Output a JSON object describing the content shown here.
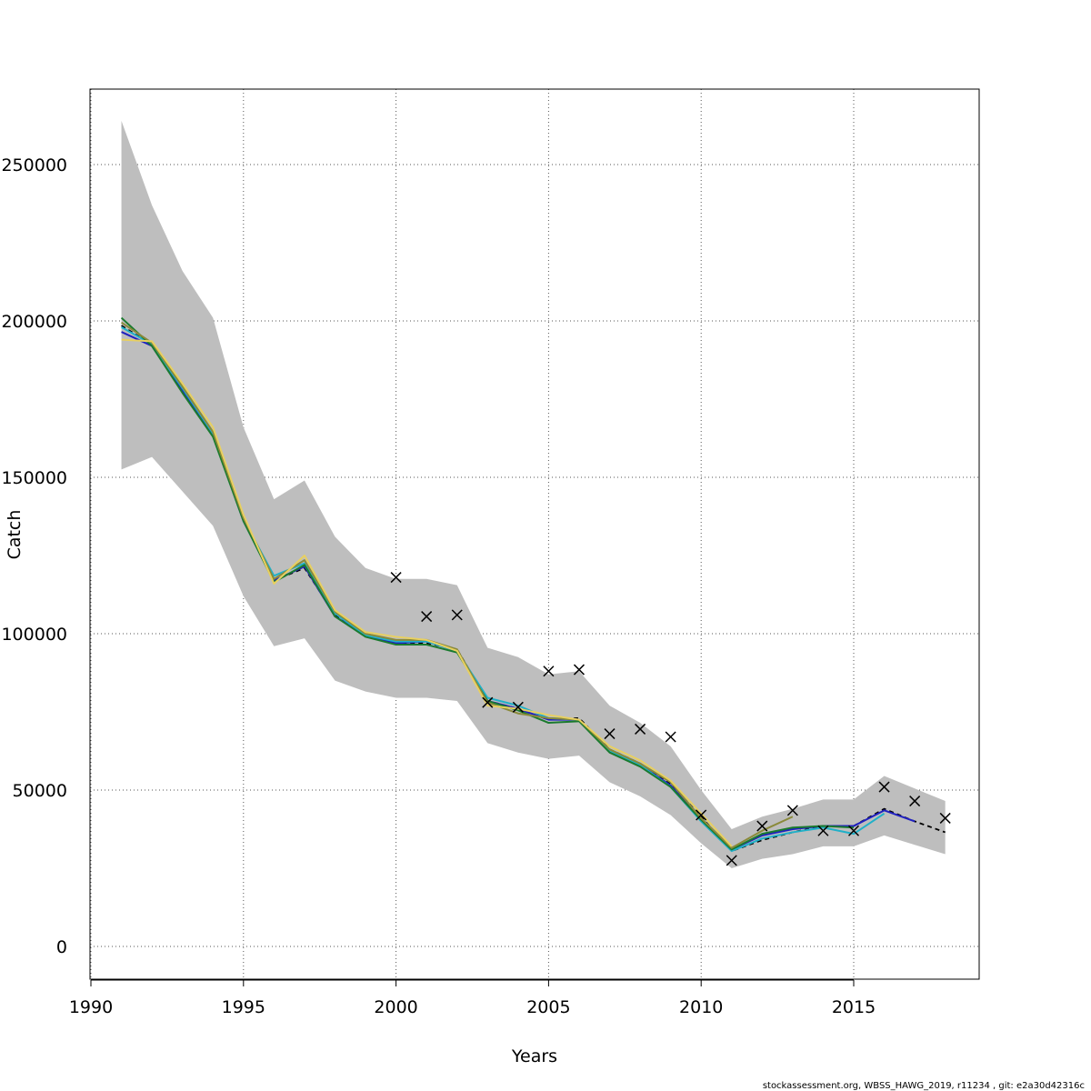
{
  "chart_data": {
    "type": "line",
    "title": "",
    "xlabel": "Years",
    "ylabel": "Catch",
    "xlim": [
      1990,
      2019
    ],
    "ylim": [
      -10000,
      275000
    ],
    "grid": true,
    "x_ticks": [
      "1990",
      "1995",
      "2000",
      "2005",
      "2010",
      "2015"
    ],
    "y_ticks": [
      "0",
      "50000",
      "100000",
      "150000",
      "200000",
      "250000"
    ],
    "confidence_band": {
      "x": [
        1991,
        1992,
        1993,
        1994,
        1995,
        1996,
        1997,
        1998,
        1999,
        2000,
        2001,
        2002,
        2003,
        2004,
        2005,
        2006,
        2007,
        2008,
        2009,
        2010,
        2011,
        2012,
        2013,
        2014,
        2015,
        2016,
        2017,
        2018
      ],
      "upper": [
        264000,
        237000,
        216000,
        201000,
        166000,
        143000,
        149000,
        131000,
        121000,
        117500,
        117500,
        115500,
        95500,
        92500,
        87000,
        88000,
        77000,
        71500,
        64000,
        50000,
        37500,
        41500,
        44000,
        47000,
        47000,
        54500,
        50500,
        46500
      ],
      "lower": [
        152500,
        156500,
        145500,
        134500,
        112000,
        96000,
        98500,
        85000,
        81500,
        79500,
        79500,
        78500,
        65000,
        62000,
        60000,
        61000,
        52500,
        48000,
        42000,
        33000,
        25000,
        28000,
        29500,
        32000,
        32000,
        35500,
        32500,
        29500
      ],
      "color": "#bebebe"
    },
    "series": [
      {
        "color": "#000000",
        "dashed": true,
        "x": [
          1991,
          1992,
          1993,
          1994,
          1995,
          1996,
          1997,
          1998,
          1999,
          2000,
          2001,
          2002,
          2003,
          2004,
          2005,
          2006,
          2007,
          2008,
          2009,
          2010,
          2011,
          2012,
          2013,
          2014,
          2015,
          2016,
          2017,
          2018
        ],
        "values": [
          198500,
          192500,
          178000,
          164000,
          136500,
          117000,
          121000,
          106000,
          99500,
          97000,
          97000,
          95000,
          78500,
          76000,
          72500,
          73000,
          63000,
          58500,
          52000,
          41500,
          30500,
          34000,
          36500,
          38500,
          38500,
          44000,
          40000,
          36500
        ]
      },
      {
        "color": "#2020c0",
        "x": [
          1991,
          1992,
          1993,
          1994,
          1995,
          1996,
          1997,
          1998,
          1999,
          2000,
          2001,
          2002,
          2003,
          2004,
          2005,
          2006,
          2007,
          2008,
          2009,
          2010,
          2011,
          2012,
          2013,
          2014,
          2015,
          2016,
          2017
        ],
        "values": [
          196500,
          192000,
          177500,
          163500,
          136000,
          117000,
          121500,
          105500,
          99500,
          97000,
          97500,
          94500,
          78500,
          76000,
          72500,
          72500,
          62500,
          58000,
          51500,
          40500,
          31000,
          35500,
          37500,
          38500,
          38500,
          43500,
          40000
        ]
      },
      {
        "color": "#20b0c8",
        "x": [
          1991,
          1992,
          1993,
          1994,
          1995,
          1996,
          1997,
          1998,
          1999,
          2000,
          2001,
          2002,
          2003,
          2004,
          2005,
          2006,
          2007,
          2008,
          2009,
          2010,
          2011,
          2012,
          2013,
          2014,
          2015,
          2016
        ],
        "values": [
          198000,
          192500,
          178500,
          164000,
          136500,
          118500,
          122500,
          106500,
          99500,
          97500,
          97500,
          94500,
          79500,
          77000,
          73000,
          72500,
          62500,
          58000,
          51000,
          40000,
          30500,
          34500,
          36500,
          38000,
          36000,
          42500
        ]
      },
      {
        "color": "#1a7a2e",
        "x": [
          1991,
          1992,
          1993,
          1994,
          1995,
          1996,
          1997,
          1998,
          1999,
          2000,
          2001,
          2002,
          2003,
          2004,
          2005,
          2006,
          2007,
          2008,
          2009,
          2010,
          2011,
          2012,
          2013,
          2014,
          2015
        ],
        "values": [
          201000,
          192000,
          177000,
          163000,
          136000,
          116500,
          122000,
          105500,
          99000,
          96500,
          96500,
          94000,
          78500,
          75500,
          71500,
          72000,
          62000,
          57500,
          51000,
          40500,
          31000,
          36000,
          38000,
          38500,
          38000
        ]
      },
      {
        "color": "#8a8a3a",
        "x": [
          1991,
          1992,
          1993,
          1994,
          1995,
          1996,
          1997,
          1998,
          1999,
          2000,
          2001,
          2002,
          2003,
          2004,
          2005,
          2006,
          2007,
          2008,
          2009,
          2010,
          2011,
          2012,
          2013
        ],
        "values": [
          199500,
          193000,
          179000,
          164500,
          137000,
          117500,
          123500,
          107000,
          100000,
          98000,
          98000,
          95000,
          78000,
          74500,
          73000,
          72500,
          63000,
          58500,
          52500,
          41000,
          31500,
          37000,
          41500
        ]
      },
      {
        "color": "#e8d060",
        "x": [
          1991,
          1992,
          1993,
          1994,
          1995,
          1996,
          1997,
          1998,
          1999,
          2000,
          2001,
          2002,
          2003,
          2004,
          2005,
          2006,
          2007,
          2008,
          2009,
          2010,
          2011
        ],
        "values": [
          194000,
          193500,
          180000,
          166000,
          138000,
          116000,
          125000,
          107500,
          100500,
          99000,
          98000,
          94500,
          77000,
          76000,
          74000,
          72500,
          64000,
          59500,
          53000,
          42500,
          32000
        ]
      }
    ],
    "observations": {
      "marker": "x",
      "x": [
        2000,
        2001,
        2002,
        2003,
        2004,
        2005,
        2006,
        2007,
        2008,
        2009,
        2010,
        2011,
        2012,
        2013,
        2014,
        2015,
        2016,
        2017,
        2018
      ],
      "values": [
        118000,
        105500,
        106000,
        78000,
        76500,
        88000,
        88500,
        68000,
        69500,
        67000,
        42000,
        27500,
        38500,
        43500,
        37000,
        37000,
        51000,
        46500,
        41000
      ]
    }
  },
  "footer": "stockassessment.org, WBSS_HAWG_2019, r11234 , git: e2a30d42316c"
}
